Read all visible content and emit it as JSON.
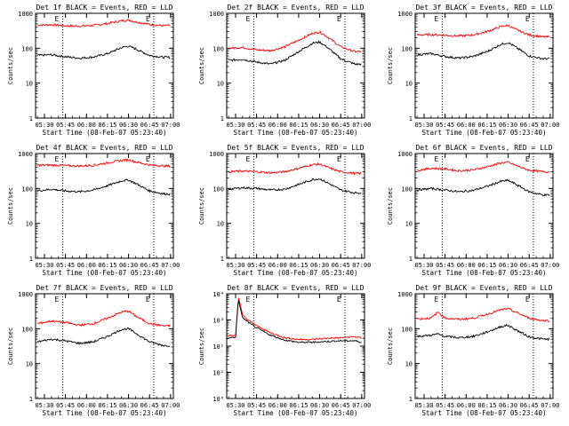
{
  "figure": {
    "background": "#ffffff",
    "axis_color": "#000000",
    "events_color": "#000000",
    "lld_color": "#ff0000"
  },
  "chart_data": [
    {
      "type": "line",
      "panel": "Det 1f",
      "yscale": "log",
      "title": "Det 1f BLACK = Events, RED = LLD",
      "xlabel": "Start Time (08-Feb-07 05:23:40)",
      "ylabel": "Counts/sec",
      "xticks": [
        "05:30",
        "05:45",
        "06:00",
        "06:15",
        "06:30",
        "06:45",
        "07:00"
      ],
      "xlim": [
        "05:23:40",
        "07:02"
      ],
      "ylim": [
        1,
        1000
      ],
      "yticks": [
        {
          "label": "1",
          "value": 1
        },
        {
          "label": "10",
          "value": 10
        },
        {
          "label": "100",
          "value": 100
        },
        {
          "label": "1000",
          "value": 1000
        }
      ],
      "markers": [
        {
          "time": "05:43",
          "label": "E"
        },
        {
          "time": "06:48",
          "label": "E"
        }
      ],
      "x": [
        "05:25",
        "05:35",
        "05:45",
        "05:55",
        "06:05",
        "06:15",
        "06:25",
        "06:30",
        "06:35",
        "06:45",
        "06:55",
        "07:00"
      ],
      "series": [
        {
          "name": "LLD",
          "values": [
            460,
            470,
            440,
            430,
            450,
            510,
            610,
            640,
            570,
            480,
            440,
            450
          ]
        },
        {
          "name": "Events",
          "values": [
            62,
            65,
            57,
            52,
            56,
            70,
            104,
            115,
            96,
            62,
            55,
            55
          ]
        }
      ]
    },
    {
      "type": "line",
      "panel": "Det 2f",
      "yscale": "log",
      "title": "Det 2f BLACK = Events, RED = LLD",
      "xlabel": "Start Time (08-Feb-07 05:23:40)",
      "ylabel": "Counts/sec",
      "xticks": [
        "05:30",
        "05:45",
        "06:00",
        "06:15",
        "06:30",
        "06:45",
        "07:00"
      ],
      "xlim": [
        "05:23:40",
        "07:02"
      ],
      "ylim": [
        1,
        1000
      ],
      "yticks": [
        {
          "label": "1",
          "value": 1
        },
        {
          "label": "10",
          "value": 10
        },
        {
          "label": "100",
          "value": 100
        },
        {
          "label": "1000",
          "value": 1000
        }
      ],
      "markers": [
        {
          "time": "05:43",
          "label": "E"
        },
        {
          "time": "06:48",
          "label": "E"
        }
      ],
      "x": [
        "05:25",
        "05:35",
        "05:45",
        "05:55",
        "06:05",
        "06:15",
        "06:25",
        "06:30",
        "06:35",
        "06:45",
        "06:55",
        "07:00"
      ],
      "series": [
        {
          "name": "LLD",
          "values": [
            100,
            105,
            90,
            85,
            110,
            170,
            270,
            290,
            220,
            110,
            80,
            80
          ]
        },
        {
          "name": "Events",
          "values": [
            45,
            48,
            40,
            35,
            45,
            80,
            140,
            150,
            110,
            50,
            35,
            35
          ]
        }
      ]
    },
    {
      "type": "line",
      "panel": "Det 3f",
      "yscale": "log",
      "title": "Det 3f BLACK = Events, RED = LLD",
      "xlabel": "Start Time (08-Feb-07 05:23:40)",
      "ylabel": "Counts/sec",
      "xticks": [
        "05:30",
        "05:45",
        "06:00",
        "06:15",
        "06:30",
        "06:45",
        "07:00"
      ],
      "xlim": [
        "05:23:40",
        "07:02"
      ],
      "ylim": [
        1,
        1000
      ],
      "yticks": [
        {
          "label": "1",
          "value": 1
        },
        {
          "label": "10",
          "value": 10
        },
        {
          "label": "100",
          "value": 100
        },
        {
          "label": "1000",
          "value": 1000
        }
      ],
      "markers": [
        {
          "time": "05:43",
          "label": "E"
        },
        {
          "time": "06:48",
          "label": "E"
        }
      ],
      "x": [
        "05:25",
        "05:35",
        "05:45",
        "05:55",
        "06:05",
        "06:15",
        "06:25",
        "06:30",
        "06:35",
        "06:45",
        "06:55",
        "07:00"
      ],
      "series": [
        {
          "name": "LLD",
          "values": [
            240,
            245,
            235,
            225,
            240,
            300,
            420,
            450,
            350,
            240,
            210,
            210
          ]
        },
        {
          "name": "Events",
          "values": [
            65,
            70,
            58,
            52,
            58,
            80,
            130,
            145,
            110,
            60,
            50,
            50
          ]
        }
      ]
    },
    {
      "type": "line",
      "panel": "Det 4f",
      "yscale": "log",
      "title": "Det 4f BLACK = Events, RED = LLD",
      "xlabel": "Start Time (08-Feb-07 05:23:40)",
      "ylabel": "Counts/sec",
      "xticks": [
        "05:30",
        "05:45",
        "06:00",
        "06:15",
        "06:30",
        "06:45",
        "07:00"
      ],
      "xlim": [
        "05:23:40",
        "07:02"
      ],
      "ylim": [
        1,
        1000
      ],
      "yticks": [
        {
          "label": "1",
          "value": 1
        },
        {
          "label": "10",
          "value": 10
        },
        {
          "label": "100",
          "value": 100
        },
        {
          "label": "1000",
          "value": 1000
        }
      ],
      "markers": [
        {
          "time": "05:43",
          "label": "E"
        },
        {
          "time": "06:48",
          "label": "E"
        }
      ],
      "x": [
        "05:25",
        "05:35",
        "05:45",
        "05:55",
        "06:05",
        "06:15",
        "06:25",
        "06:30",
        "06:35",
        "06:45",
        "06:55",
        "07:00"
      ],
      "series": [
        {
          "name": "LLD",
          "values": [
            460,
            470,
            450,
            440,
            460,
            540,
            640,
            660,
            580,
            470,
            440,
            440
          ]
        },
        {
          "name": "Events",
          "values": [
            85,
            95,
            85,
            80,
            90,
            120,
            165,
            175,
            140,
            85,
            70,
            70
          ]
        }
      ]
    },
    {
      "type": "line",
      "panel": "Det 5f",
      "yscale": "log",
      "title": "Det 5f BLACK = Events, RED = LLD",
      "xlabel": "Start Time (08-Feb-07 05:23:40)",
      "ylabel": "Counts/sec",
      "xticks": [
        "05:30",
        "05:45",
        "06:00",
        "06:15",
        "06:30",
        "06:45",
        "07:00"
      ],
      "xlim": [
        "05:23:40",
        "07:02"
      ],
      "ylim": [
        1,
        1000
      ],
      "yticks": [
        {
          "label": "1",
          "value": 1
        },
        {
          "label": "10",
          "value": 10
        },
        {
          "label": "100",
          "value": 100
        },
        {
          "label": "1000",
          "value": 1000
        }
      ],
      "markers": [
        {
          "time": "05:43",
          "label": "E"
        },
        {
          "time": "06:48",
          "label": "E"
        }
      ],
      "x": [
        "05:25",
        "05:35",
        "05:45",
        "05:55",
        "06:05",
        "06:15",
        "06:25",
        "06:30",
        "06:35",
        "06:45",
        "06:55",
        "07:00"
      ],
      "series": [
        {
          "name": "LLD",
          "values": [
            300,
            315,
            300,
            280,
            300,
            380,
            480,
            500,
            410,
            300,
            270,
            270
          ]
        },
        {
          "name": "Events",
          "values": [
            95,
            105,
            100,
            90,
            95,
            130,
            180,
            190,
            150,
            90,
            75,
            75
          ]
        }
      ]
    },
    {
      "type": "line",
      "panel": "Det 6f",
      "yscale": "log",
      "title": "Det 6f BLACK = Events, RED = LLD",
      "xlabel": "Start Time (08-Feb-07 05:23:40)",
      "ylabel": "Counts/sec",
      "xticks": [
        "05:30",
        "05:45",
        "06:00",
        "06:15",
        "06:30",
        "06:45",
        "07:00"
      ],
      "xlim": [
        "05:23:40",
        "07:02"
      ],
      "ylim": [
        1,
        1000
      ],
      "yticks": [
        {
          "label": "1",
          "value": 1
        },
        {
          "label": "10",
          "value": 10
        },
        {
          "label": "100",
          "value": 100
        },
        {
          "label": "1000",
          "value": 1000
        }
      ],
      "markers": [
        {
          "time": "05:43",
          "label": "E"
        },
        {
          "time": "06:48",
          "label": "E"
        }
      ],
      "x": [
        "05:25",
        "05:35",
        "05:45",
        "05:55",
        "06:05",
        "06:15",
        "06:25",
        "06:30",
        "06:35",
        "06:45",
        "06:55",
        "07:00"
      ],
      "series": [
        {
          "name": "LLD",
          "values": [
            330,
            380,
            360,
            320,
            340,
            420,
            540,
            560,
            460,
            330,
            300,
            300
          ]
        },
        {
          "name": "Events",
          "values": [
            90,
            100,
            90,
            80,
            88,
            115,
            160,
            170,
            135,
            80,
            65,
            65
          ]
        }
      ]
    },
    {
      "type": "line",
      "panel": "Det 7f",
      "yscale": "log",
      "title": "Det 7f BLACK = Events, RED = LLD",
      "xlabel": "Start Time (08-Feb-07 05:23:40)",
      "ylabel": "Counts/sec",
      "xticks": [
        "05:30",
        "05:45",
        "06:00",
        "06:15",
        "06:30",
        "06:45",
        "07:00"
      ],
      "xlim": [
        "05:23:40",
        "07:02"
      ],
      "ylim": [
        1,
        1000
      ],
      "yticks": [
        {
          "label": "1",
          "value": 1
        },
        {
          "label": "10",
          "value": 10
        },
        {
          "label": "100",
          "value": 100
        },
        {
          "label": "1000",
          "value": 1000
        }
      ],
      "markers": [
        {
          "time": "05:43",
          "label": "E"
        },
        {
          "time": "06:48",
          "label": "E"
        }
      ],
      "x": [
        "05:25",
        "05:35",
        "05:45",
        "05:55",
        "06:05",
        "06:15",
        "06:25",
        "06:30",
        "06:35",
        "06:45",
        "06:55",
        "07:00"
      ],
      "series": [
        {
          "name": "LLD",
          "values": [
            140,
            165,
            150,
            125,
            140,
            200,
            300,
            320,
            230,
            140,
            120,
            120
          ]
        },
        {
          "name": "Events",
          "values": [
            42,
            50,
            45,
            38,
            42,
            60,
            95,
            100,
            75,
            42,
            33,
            33
          ]
        }
      ]
    },
    {
      "type": "line",
      "panel": "Det 8f",
      "yscale": "log",
      "title": "Det 8f BLACK = Events, RED = LLD",
      "xlabel": "Start Time (08-Feb-07 05:23:40)",
      "ylabel": "Counts/sec",
      "xticks": [
        "05:30",
        "05:45",
        "06:00",
        "06:15",
        "06:30",
        "06:45",
        "07:00"
      ],
      "xlim": [
        "05:23:40",
        "07:02"
      ],
      "ylim": [
        1,
        10000
      ],
      "yticks": [
        {
          "label": "10⁰",
          "value": 1
        },
        {
          "label": "10¹",
          "value": 10
        },
        {
          "label": "10²",
          "value": 100
        },
        {
          "label": "10³",
          "value": 1000
        },
        {
          "label": "10⁴",
          "value": 10000
        }
      ],
      "markers": [
        {
          "time": "05:43",
          "label": "E"
        },
        {
          "time": "06:48",
          "label": "E"
        }
      ],
      "x": [
        "05:24",
        "05:30",
        "05:32",
        "05:35",
        "05:40",
        "05:45",
        "05:55",
        "06:05",
        "06:15",
        "06:25",
        "06:35",
        "06:45",
        "06:55",
        "07:00"
      ],
      "series": [
        {
          "name": "LLD",
          "values": [
            250,
            250,
            8000,
            1500,
            900,
            600,
            320,
            210,
            180,
            180,
            200,
            210,
            230,
            200
          ]
        },
        {
          "name": "Events",
          "values": [
            200,
            220,
            6000,
            1200,
            750,
            500,
            260,
            170,
            140,
            140,
            150,
            160,
            160,
            140
          ]
        }
      ]
    },
    {
      "type": "line",
      "panel": "Det 9f",
      "yscale": "log",
      "title": "Det 9f BLACK = Events, RED = LLD",
      "xlabel": "Start Time (08-Feb-07 05:23:40)",
      "ylabel": "Counts/sec",
      "xticks": [
        "05:30",
        "05:45",
        "06:00",
        "06:15",
        "06:30",
        "06:45",
        "07:00"
      ],
      "xlim": [
        "05:23:40",
        "07:02"
      ],
      "ylim": [
        1,
        1000
      ],
      "yticks": [
        {
          "label": "1",
          "value": 1
        },
        {
          "label": "10",
          "value": 10
        },
        {
          "label": "100",
          "value": 100
        },
        {
          "label": "1000",
          "value": 1000
        }
      ],
      "markers": [
        {
          "time": "05:43",
          "label": "E"
        },
        {
          "time": "06:48",
          "label": "E"
        }
      ],
      "x": [
        "05:25",
        "05:35",
        "05:40",
        "05:45",
        "05:55",
        "06:05",
        "06:15",
        "06:25",
        "06:30",
        "06:35",
        "06:45",
        "06:55",
        "07:00"
      ],
      "series": [
        {
          "name": "LLD",
          "values": [
            190,
            200,
            300,
            200,
            185,
            200,
            260,
            350,
            370,
            300,
            200,
            170,
            170
          ]
        },
        {
          "name": "Events",
          "values": [
            60,
            65,
            70,
            60,
            55,
            60,
            80,
            115,
            125,
            95,
            58,
            50,
            50
          ]
        }
      ]
    }
  ]
}
